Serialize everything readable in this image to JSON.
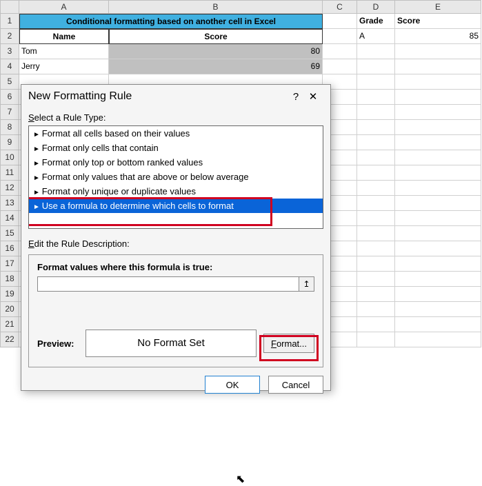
{
  "columns": [
    "A",
    "B",
    "C",
    "D",
    "E"
  ],
  "column_widths": {
    "A": 130,
    "B": 310,
    "C": 50,
    "D": 55,
    "E": 125
  },
  "rows_visible": 22,
  "title_row": {
    "text": "Conditional formatting based on another cell in Excel",
    "bg": "#40b0e0"
  },
  "headers_row": {
    "A": "Name",
    "B": "Score"
  },
  "data": [
    {
      "name": "Tom",
      "score": 80
    },
    {
      "name": "Jerry",
      "score": 69
    }
  ],
  "side_headers": {
    "D": "Grade",
    "E": "Score"
  },
  "side_data": {
    "D": "A",
    "E": 85
  },
  "dialog": {
    "title": "New Formatting Rule",
    "help": "?",
    "close": "✕",
    "select_label": "Select a Rule Type:",
    "rules": [
      "Format all cells based on their values",
      "Format only cells that contain",
      "Format only top or bottom ranked values",
      "Format only values that are above or below average",
      "Format only unique or duplicate values",
      "Use a formula to determine which cells to format"
    ],
    "selected_rule_index": 5,
    "edit_label": "Edit the Rule Description:",
    "formula_label": "Format values where this formula is true:",
    "formula_value": "",
    "range_btn": "↥",
    "preview_label": "Preview:",
    "preview_text": "No Format Set",
    "format_btn": "Format...",
    "ok": "OK",
    "cancel": "Cancel"
  },
  "highlight_boxes": {
    "color": "#d00020"
  },
  "cursor_glyph": "↖"
}
